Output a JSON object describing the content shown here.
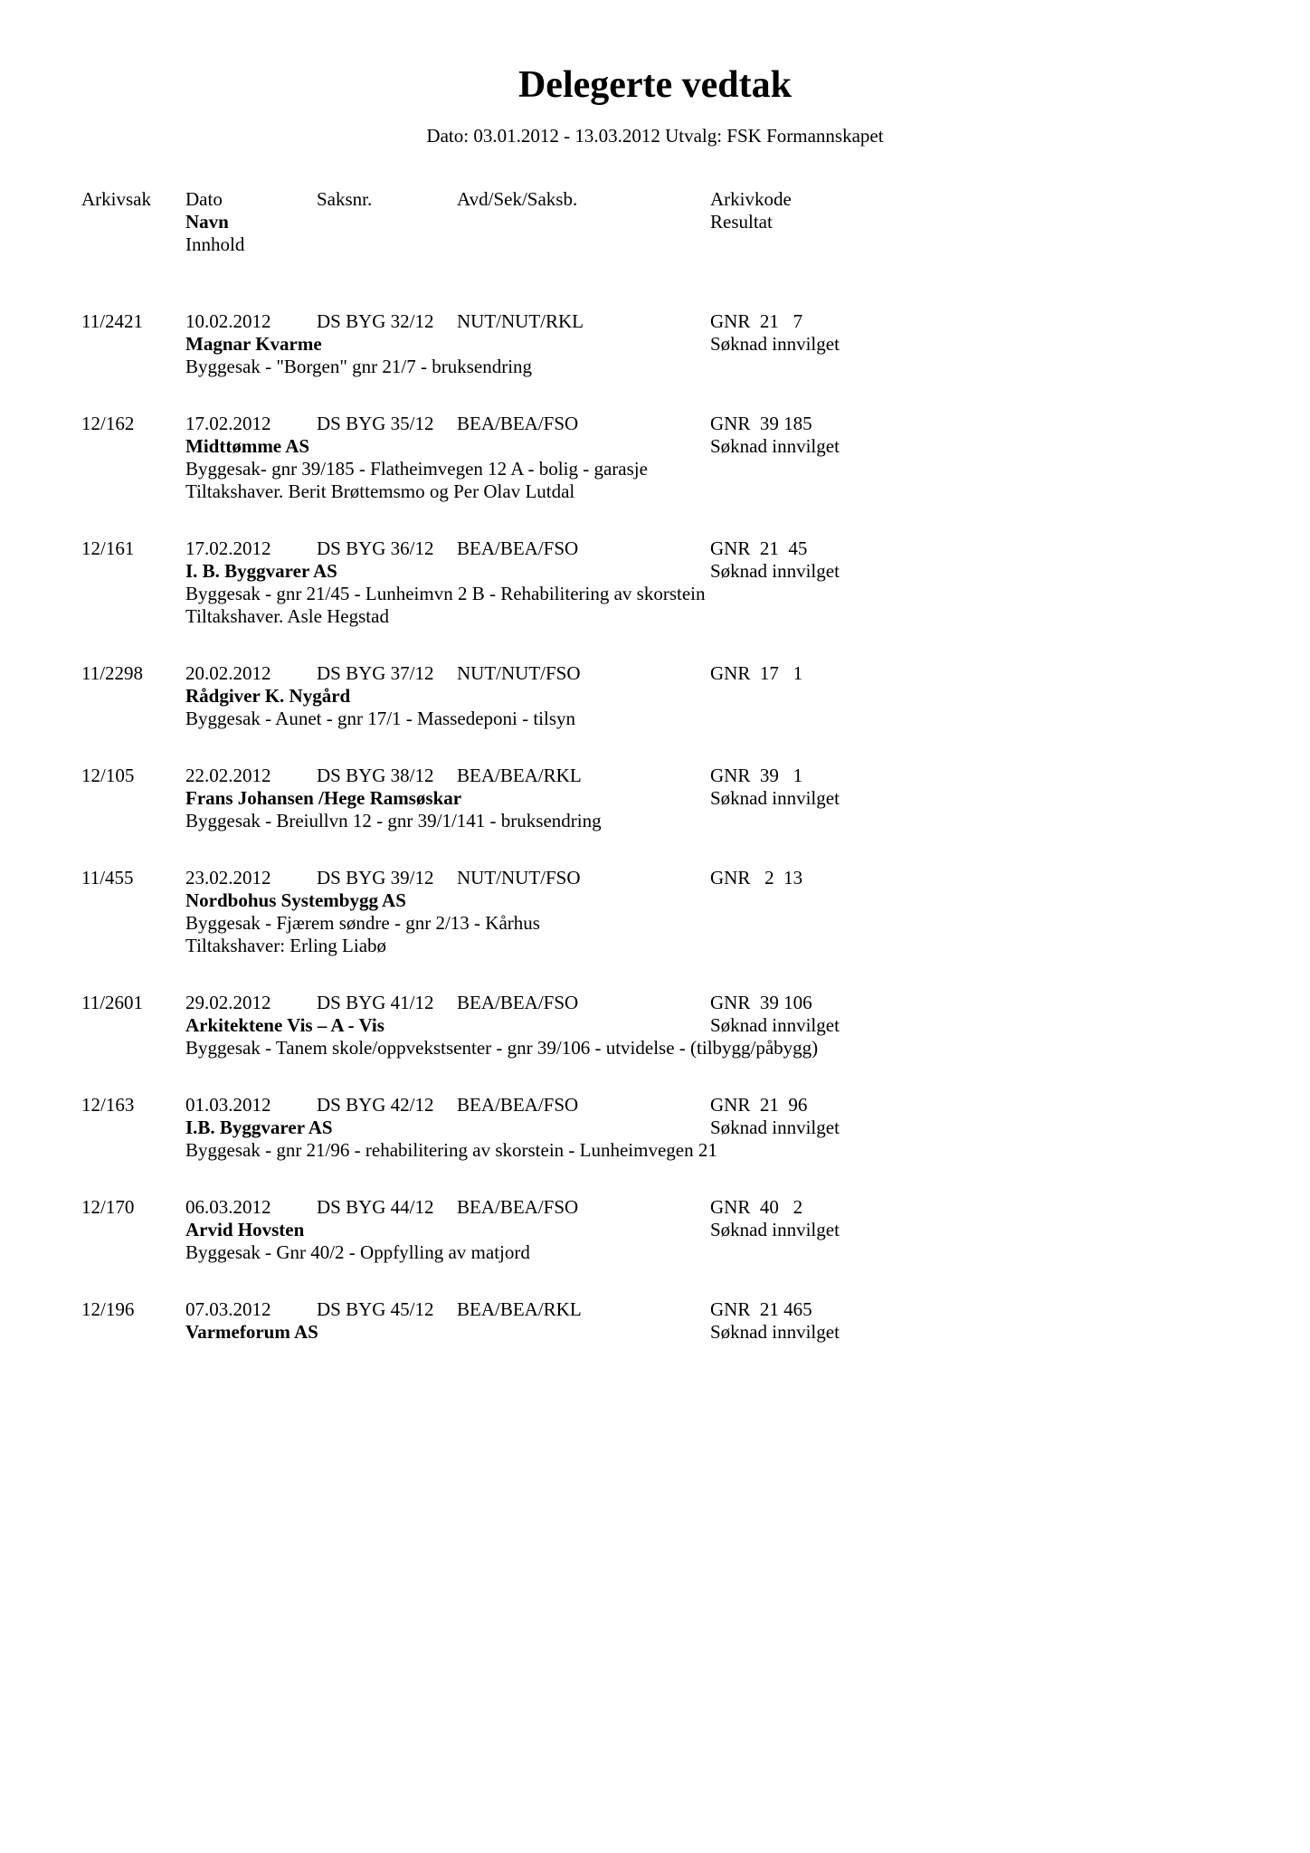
{
  "title": "Delegerte vedtak",
  "subtitle": "Dato: 03.01.2012 - 13.03.2012  Utvalg: FSK Formannskapet",
  "header": {
    "arkivsak": "Arkivsak",
    "dato": "Dato",
    "saksnr": "Saksnr.",
    "avd": "Avd/Sek/Saksb.",
    "arkivkode": "Arkivkode",
    "navn": "Navn",
    "resultat": "Resultat",
    "innhold": "Innhold"
  },
  "records": [
    {
      "arkivsak": "11/2421",
      "dato": "10.02.2012",
      "saksnr": "DS BYG 32/12",
      "avd": "NUT/NUT/RKL",
      "arkivkode": "GNR  21   7",
      "navn": "Magnar Kvarme",
      "resultat": "Søknad innvilget",
      "lines": [
        "Byggesak - \"Borgen\" gnr 21/7 - bruksendring"
      ]
    },
    {
      "arkivsak": "12/162",
      "dato": "17.02.2012",
      "saksnr": "DS BYG 35/12",
      "avd": "BEA/BEA/FSO",
      "arkivkode": "GNR  39 185",
      "navn": "Midttømme AS",
      "resultat": "Søknad innvilget",
      "lines": [
        "Byggesak- gnr 39/185 - Flatheimvegen 12 A - bolig - garasje",
        "Tiltakshaver. Berit Brøttemsmo og Per Olav Lutdal"
      ]
    },
    {
      "arkivsak": "12/161",
      "dato": "17.02.2012",
      "saksnr": "DS BYG 36/12",
      "avd": "BEA/BEA/FSO",
      "arkivkode": "GNR  21  45",
      "navn": "I. B. Byggvarer AS",
      "resultat": "Søknad innvilget",
      "lines": [
        "Byggesak - gnr 21/45 - Lunheimvn 2 B - Rehabilitering av skorstein",
        "Tiltakshaver. Asle Hegstad"
      ]
    },
    {
      "arkivsak": "11/2298",
      "dato": "20.02.2012",
      "saksnr": "DS BYG 37/12",
      "avd": "NUT/NUT/FSO",
      "arkivkode": "GNR  17   1",
      "navn": "Rådgiver K. Nygård",
      "resultat": "",
      "lines": [
        "Byggesak - Aunet - gnr 17/1 - Massedeponi - tilsyn"
      ]
    },
    {
      "arkivsak": "12/105",
      "dato": "22.02.2012",
      "saksnr": "DS BYG 38/12",
      "avd": "BEA/BEA/RKL",
      "arkivkode": "GNR  39   1",
      "navn": "Frans Johansen /Hege Ramsøskar",
      "resultat": "Søknad innvilget",
      "lines": [
        "Byggesak - Breiullvn 12 - gnr 39/1/141 - bruksendring"
      ]
    },
    {
      "arkivsak": "11/455",
      "dato": "23.02.2012",
      "saksnr": "DS BYG 39/12",
      "avd": "NUT/NUT/FSO",
      "arkivkode": "GNR   2  13",
      "navn": "Nordbohus Systembygg AS",
      "resultat": "",
      "lines": [
        "Byggesak - Fjærem søndre - gnr 2/13 - Kårhus",
        "Tiltakshaver: Erling Liabø"
      ]
    },
    {
      "arkivsak": "11/2601",
      "dato": "29.02.2012",
      "saksnr": "DS BYG 41/12",
      "avd": "BEA/BEA/FSO",
      "arkivkode": "GNR  39 106",
      "navn": "Arkitektene Vis – A - Vis",
      "resultat": "Søknad innvilget",
      "lines": [
        "Byggesak - Tanem skole/oppvekstsenter - gnr 39/106 - utvidelse - (tilbygg/påbygg)"
      ]
    },
    {
      "arkivsak": "12/163",
      "dato": "01.03.2012",
      "saksnr": "DS BYG 42/12",
      "avd": "BEA/BEA/FSO",
      "arkivkode": "GNR  21  96",
      "navn": "I.B. Byggvarer AS",
      "resultat": "Søknad innvilget",
      "lines": [
        "Byggesak - gnr 21/96 - rehabilitering av skorstein - Lunheimvegen 21"
      ]
    },
    {
      "arkivsak": "12/170",
      "dato": "06.03.2012",
      "saksnr": "DS BYG 44/12",
      "avd": "BEA/BEA/FSO",
      "arkivkode": "GNR  40   2",
      "navn": "Arvid Hovsten",
      "resultat": "Søknad innvilget",
      "lines": [
        "Byggesak - Gnr 40/2 - Oppfylling av matjord"
      ]
    },
    {
      "arkivsak": "12/196",
      "dato": "07.03.2012",
      "saksnr": "DS BYG 45/12",
      "avd": "BEA/BEA/RKL",
      "arkivkode": "GNR  21 465",
      "navn": "Varmeforum AS",
      "resultat": "Søknad innvilget",
      "lines": []
    }
  ]
}
